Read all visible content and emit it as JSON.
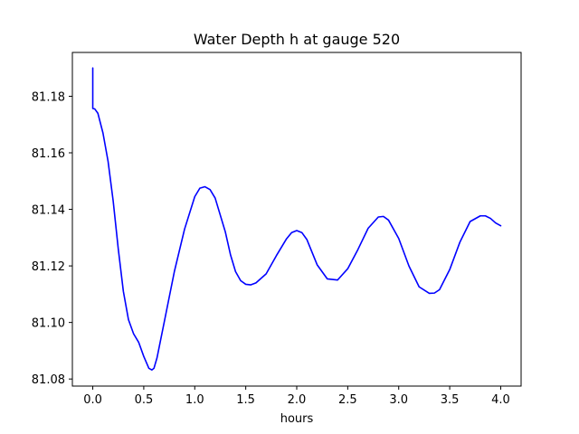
{
  "chart_data": {
    "type": "line",
    "title": "Water Depth h at gauge 520",
    "xlabel": "hours",
    "ylabel": "",
    "xlim": [
      -0.2,
      4.2
    ],
    "ylim": [
      81.0775,
      81.1955
    ],
    "xticks": [
      0.0,
      0.5,
      1.0,
      1.5,
      2.0,
      2.5,
      3.0,
      3.5,
      4.0
    ],
    "xtick_labels": [
      "0.0",
      "0.5",
      "1.0",
      "1.5",
      "2.0",
      "2.5",
      "3.0",
      "3.5",
      "4.0"
    ],
    "yticks": [
      81.08,
      81.1,
      81.12,
      81.14,
      81.16,
      81.18
    ],
    "ytick_labels": [
      "81.08",
      "81.10",
      "81.12",
      "81.14",
      "81.16",
      "81.18"
    ],
    "grid": false,
    "legend": "none",
    "series": [
      {
        "color": "#0000ff",
        "x": [
          0.0,
          0.0,
          0.02,
          0.05,
          0.1,
          0.15,
          0.2,
          0.25,
          0.3,
          0.35,
          0.4,
          0.45,
          0.5,
          0.55,
          0.58,
          0.6,
          0.63,
          0.7,
          0.8,
          0.9,
          1.0,
          1.05,
          1.1,
          1.15,
          1.2,
          1.3,
          1.35,
          1.4,
          1.45,
          1.5,
          1.55,
          1.6,
          1.7,
          1.8,
          1.9,
          1.95,
          2.0,
          2.05,
          2.1,
          2.2,
          2.3,
          2.4,
          2.5,
          2.6,
          2.7,
          2.8,
          2.85,
          2.9,
          3.0,
          3.1,
          3.2,
          3.3,
          3.35,
          3.4,
          3.5,
          3.6,
          3.7,
          3.8,
          3.85,
          3.9,
          3.95,
          4.0
        ],
        "y": [
          81.19,
          81.1757,
          81.1755,
          81.174,
          81.167,
          81.157,
          81.143,
          81.126,
          81.111,
          81.101,
          81.096,
          81.093,
          81.088,
          81.0838,
          81.0832,
          81.0838,
          81.0875,
          81.1,
          81.118,
          81.133,
          81.1445,
          81.1475,
          81.148,
          81.147,
          81.144,
          81.132,
          81.124,
          81.118,
          81.1148,
          81.1135,
          81.1133,
          81.114,
          81.1172,
          81.1236,
          81.1296,
          81.1318,
          81.1325,
          81.1318,
          81.1293,
          81.1204,
          81.1154,
          81.115,
          81.119,
          81.1258,
          81.1333,
          81.1373,
          81.1375,
          81.1362,
          81.1297,
          81.12,
          81.1126,
          81.1103,
          81.1104,
          81.1116,
          81.1187,
          81.1284,
          81.1357,
          81.1377,
          81.1377,
          81.1368,
          81.1352,
          81.1342
        ]
      }
    ]
  }
}
